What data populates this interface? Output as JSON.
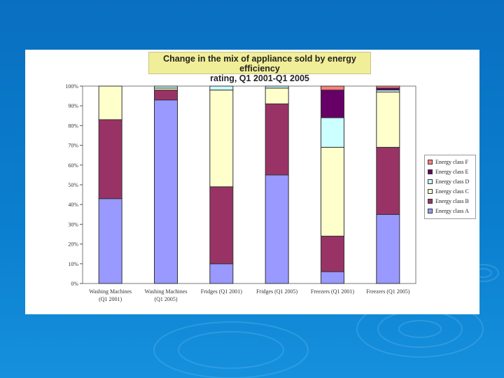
{
  "chart_data": {
    "type": "stacked-bar-100",
    "title_line1": "Change in the mix of appliance sold by energy efficiency",
    "title_line2": "rating, Q1 2001-Q1 2005",
    "categories": [
      "Washing Machines (Q1 2001)",
      "Washing Machines (Q1 2005)",
      "Fridges (Q1 2001)",
      "Fridges (Q1 2005)",
      "Freezers (Q1 2001)",
      "Freezers (Q1 2005)"
    ],
    "category_label_lines": [
      [
        "Washing Machines",
        "(Q1 2001)"
      ],
      [
        "Washing Machines",
        "(Q1 2005)"
      ],
      [
        "Fridges (Q1 2001)"
      ],
      [
        "Fridges (Q1 2005)"
      ],
      [
        "Freezers (Q1 2001)"
      ],
      [
        "Freezers (Q1 2005)"
      ]
    ],
    "series": [
      {
        "name": "Energy class A",
        "color": "#9999ff",
        "values": [
          43,
          93,
          10,
          55,
          6,
          35
        ]
      },
      {
        "name": "Energy class B",
        "color": "#993366",
        "values": [
          40,
          5,
          39,
          36,
          18,
          34
        ]
      },
      {
        "name": "Energy class C",
        "color": "#ffffcc",
        "values": [
          17,
          1,
          49,
          8,
          45,
          28
        ]
      },
      {
        "name": "Energy class D",
        "color": "#ccffff",
        "values": [
          0,
          1,
          2,
          1,
          15,
          1
        ]
      },
      {
        "name": "Energy class E",
        "color": "#660066",
        "values": [
          0,
          0,
          0,
          0,
          14,
          1
        ]
      },
      {
        "name": "Energy class F",
        "color": "#ff8080",
        "values": [
          0,
          0,
          0,
          0,
          2,
          1
        ]
      }
    ],
    "legend_order": [
      "Energy class F",
      "Energy class E",
      "Energy class D",
      "Energy class C",
      "Energy class B",
      "Energy class A"
    ],
    "y_ticks": [
      "0%",
      "10%",
      "20%",
      "30%",
      "40%",
      "50%",
      "60%",
      "70%",
      "80%",
      "90%",
      "100%"
    ],
    "ylim": [
      0,
      100
    ],
    "legend_position": "right",
    "grid": false
  },
  "colors": {
    "background": "#0a78c8",
    "title_fill": "#f0ee98"
  }
}
